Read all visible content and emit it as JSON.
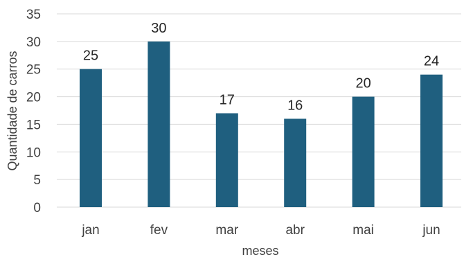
{
  "chart_data": {
    "type": "bar",
    "categories": [
      "jan",
      "fev",
      "mar",
      "abr",
      "mai",
      "jun"
    ],
    "values": [
      25,
      30,
      17,
      16,
      20,
      24
    ],
    "title": "",
    "xlabel": "meses",
    "ylabel": "Quantidade de carros",
    "ylim": [
      0,
      35
    ],
    "yticks": [
      0,
      5,
      10,
      15,
      20,
      25,
      30,
      35
    ],
    "grid": true,
    "data_labels": true,
    "legend": "none",
    "bar_color": "#1f5f7f"
  }
}
